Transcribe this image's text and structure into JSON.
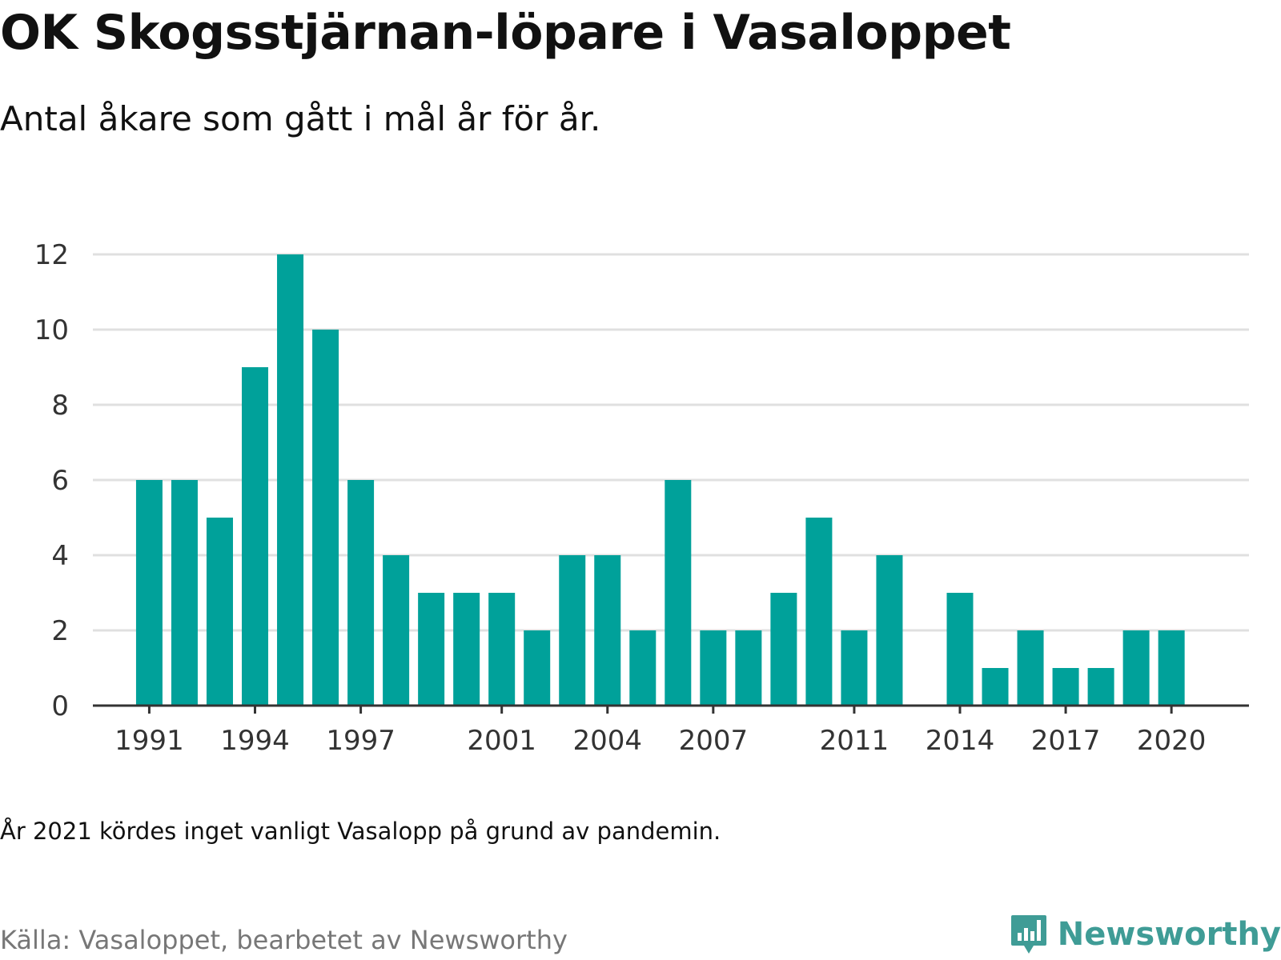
{
  "title": "OK Skogsstjärnan-löpare i Vasaloppet",
  "subtitle": "Antal åkare som gått i mål år för år.",
  "note": "År 2021 kördes inget vanligt Vasalopp på grund av pandemin.",
  "source": "Källa: Vasaloppet, bearbetet av Newsworthy",
  "logo": {
    "text": "Newsworthy",
    "color": "#3f9c96",
    "icon": "bar-chart-speech-bubble-icon"
  },
  "colors": {
    "bar": "#00a19a",
    "grid": "#e0e0e0",
    "axis": "#333333"
  },
  "chart_data": {
    "type": "bar",
    "title": "OK Skogsstjärnan-löpare i Vasaloppet",
    "subtitle": "Antal åkare som gått i mål år för år.",
    "xlabel": "",
    "ylabel": "",
    "ylim": [
      0,
      12
    ],
    "yticks": [
      0,
      2,
      4,
      6,
      8,
      10,
      12
    ],
    "xlim": [
      1989.4,
      2022.2
    ],
    "xticks": [
      1991,
      1994,
      1997,
      2001,
      2004,
      2007,
      2011,
      2014,
      2017,
      2020
    ],
    "grid": true,
    "legend": "none",
    "x": [
      1991,
      1992,
      1993,
      1994,
      1995,
      1996,
      1997,
      1998,
      1999,
      2000,
      2001,
      2002,
      2003,
      2004,
      2005,
      2006,
      2007,
      2008,
      2009,
      2010,
      2011,
      2012,
      2014,
      2015,
      2016,
      2017,
      2018,
      2019,
      2020
    ],
    "values": [
      6,
      6,
      5,
      9,
      12,
      10,
      6,
      4,
      3,
      3,
      3,
      2,
      4,
      4,
      2,
      6,
      2,
      2,
      3,
      5,
      2,
      4,
      3,
      1,
      2,
      1,
      1,
      2,
      2
    ]
  }
}
